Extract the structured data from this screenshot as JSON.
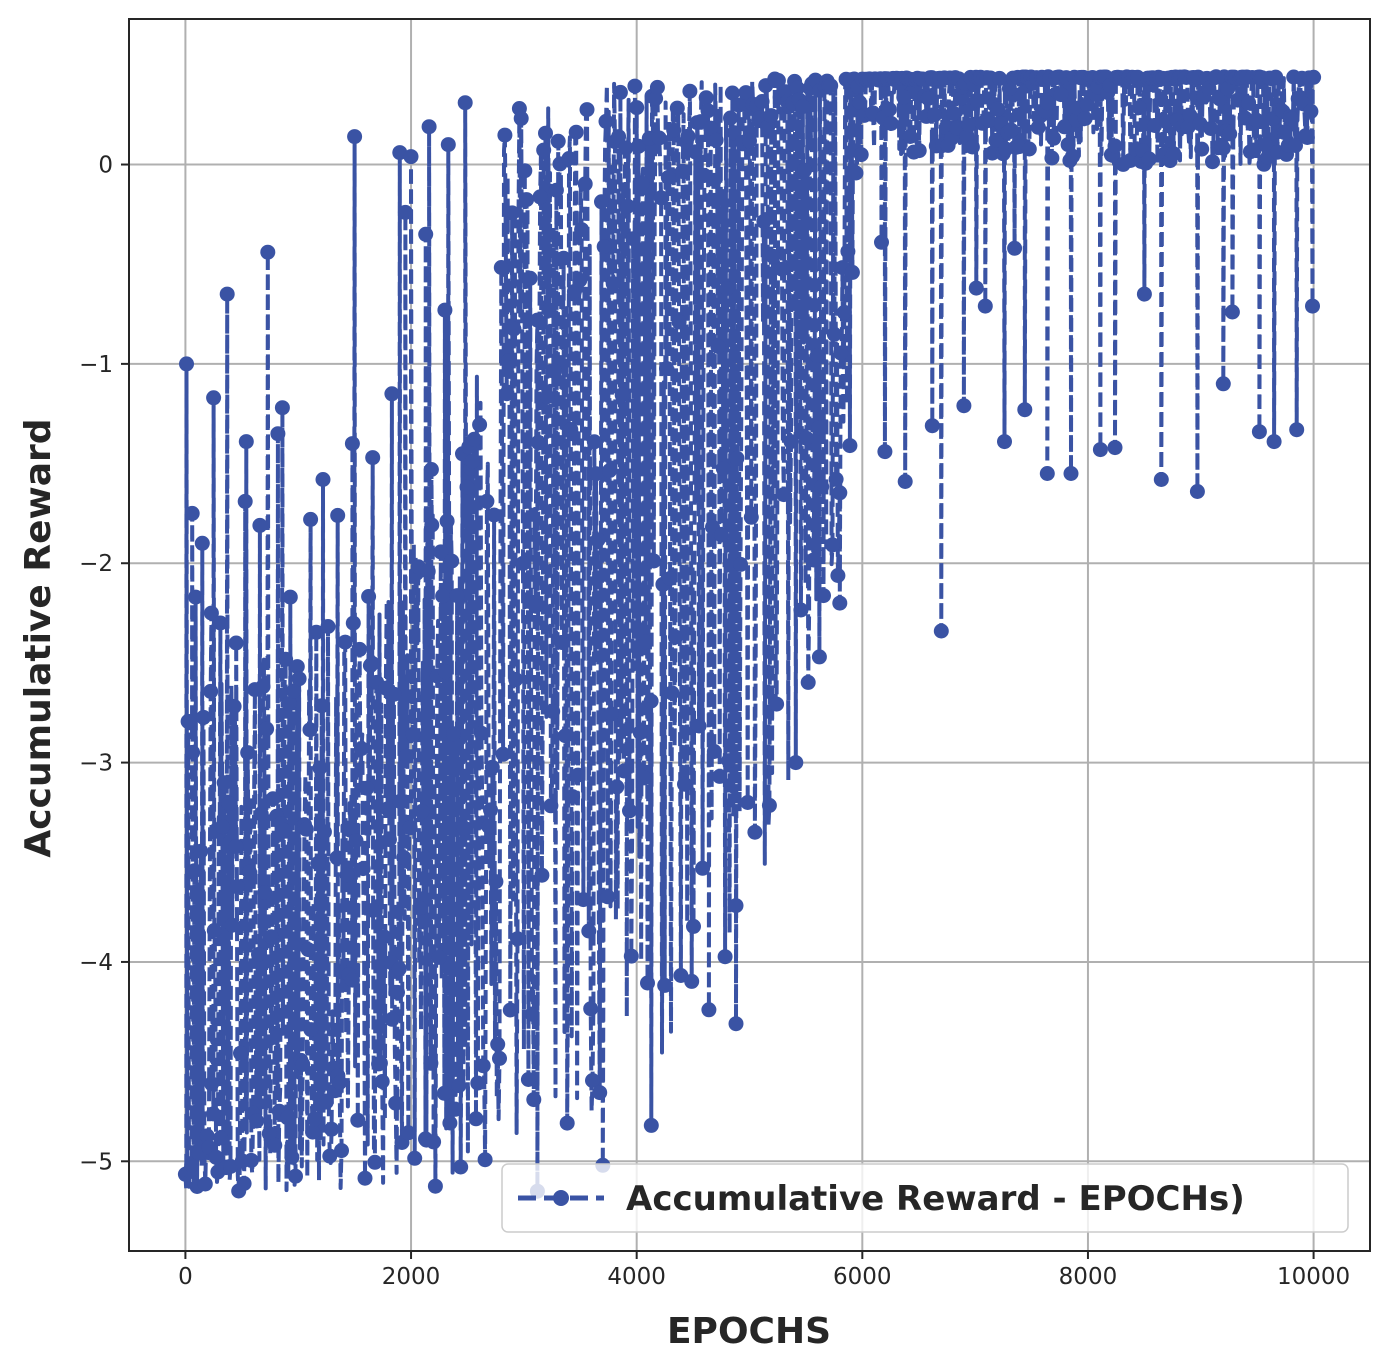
{
  "chart_data": {
    "type": "line",
    "title": "",
    "xlabel": "EPOCHS",
    "ylabel": "Accumulative Reward",
    "xlim": [
      -500,
      10500
    ],
    "ylim": [
      -5.45,
      0.73
    ],
    "xticks": [
      0,
      2000,
      4000,
      6000,
      8000,
      10000
    ],
    "xtick_labels": [
      "0",
      "2000",
      "4000",
      "6000",
      "8000",
      "10000"
    ],
    "yticks": [
      0,
      -1,
      -2,
      -3,
      -4,
      -5
    ],
    "ytick_labels": [
      "0",
      "−1",
      "−2",
      "−3",
      "−4",
      "−5"
    ],
    "grid": true,
    "legend_position": "lower right",
    "series": [
      {
        "name": "Accumulative Reward - EPOCHs)",
        "color": "#3a53a4",
        "linestyle": "dashed",
        "marker": "circle",
        "n_points": 10000,
        "envelope": {
          "x": [
            0,
            500,
            1000,
            1500,
            2000,
            2500,
            2700,
            3000,
            3500,
            4000,
            4500,
            5000,
            5500,
            5800,
            6000,
            7000,
            8000,
            9000,
            10000
          ],
          "upper": [
            -2.6,
            -2.5,
            -2.4,
            -2.2,
            -1.9,
            -1.3,
            0.38,
            0.4,
            0.42,
            0.43,
            0.43,
            0.43,
            0.43,
            0.43,
            0.43,
            0.44,
            0.44,
            0.44,
            0.44
          ],
          "typical": [
            -5.0,
            -4.5,
            -4.2,
            -3.8,
            -3.2,
            -2.6,
            -2.0,
            -1.5,
            -1.0,
            -0.5,
            -0.2,
            0.1,
            0.3,
            0.4,
            0.42,
            0.43,
            0.43,
            0.43,
            0.43
          ],
          "lower": [
            -5.15,
            -5.15,
            -5.15,
            -5.15,
            -5.15,
            -5.1,
            -5.05,
            -5.0,
            -4.9,
            -4.7,
            -4.4,
            -3.8,
            -2.9,
            -2.2,
            0.05,
            0.05,
            0.0,
            0.0,
            0.0
          ]
        },
        "spikes": [
          {
            "x": 10,
            "y": -1.0
          },
          {
            "x": 60,
            "y": -1.75
          },
          {
            "x": 90,
            "y": -2.17
          },
          {
            "x": 150,
            "y": -1.9
          },
          {
            "x": 230,
            "y": -2.25
          },
          {
            "x": 250,
            "y": -1.17
          },
          {
            "x": 310,
            "y": -2.3
          },
          {
            "x": 370,
            "y": -0.65
          },
          {
            "x": 450,
            "y": -2.4
          },
          {
            "x": 540,
            "y": -1.39
          },
          {
            "x": 530,
            "y": -1.69
          },
          {
            "x": 660,
            "y": -1.81
          },
          {
            "x": 730,
            "y": -0.44
          },
          {
            "x": 820,
            "y": -1.35
          },
          {
            "x": 860,
            "y": -1.22
          },
          {
            "x": 930,
            "y": -2.17
          },
          {
            "x": 1110,
            "y": -1.78
          },
          {
            "x": 1220,
            "y": -1.58
          },
          {
            "x": 1350,
            "y": -1.76
          },
          {
            "x": 1480,
            "y": -1.4
          },
          {
            "x": 1500,
            "y": 0.14
          },
          {
            "x": 1660,
            "y": -1.47
          },
          {
            "x": 1830,
            "y": -1.15
          },
          {
            "x": 1900,
            "y": 0.06
          },
          {
            "x": 1950,
            "y": -0.24
          },
          {
            "x": 2000,
            "y": 0.04
          },
          {
            "x": 2130,
            "y": -0.35
          },
          {
            "x": 2160,
            "y": 0.19
          },
          {
            "x": 2180,
            "y": -1.53
          },
          {
            "x": 2300,
            "y": -0.73
          },
          {
            "x": 2330,
            "y": 0.1
          },
          {
            "x": 2480,
            "y": 0.31
          },
          {
            "x": 3120,
            "y": -5.15
          },
          {
            "x": 3700,
            "y": -5.02
          },
          {
            "x": 4130,
            "y": -4.82
          },
          {
            "x": 4640,
            "y": -4.24
          },
          {
            "x": 4880,
            "y": -4.31
          },
          {
            "x": 5410,
            "y": -3.0
          },
          {
            "x": 5620,
            "y": -2.47
          },
          {
            "x": 5800,
            "y": -2.2
          },
          {
            "x": 5890,
            "y": -1.41
          },
          {
            "x": 5990,
            "y": 0.05
          },
          {
            "x": 6170,
            "y": -0.39
          },
          {
            "x": 6200,
            "y": -1.44
          },
          {
            "x": 6380,
            "y": -1.59
          },
          {
            "x": 6620,
            "y": -1.31
          },
          {
            "x": 6700,
            "y": -2.34
          },
          {
            "x": 6900,
            "y": -1.21
          },
          {
            "x": 7010,
            "y": -0.62
          },
          {
            "x": 7090,
            "y": -0.71
          },
          {
            "x": 7260,
            "y": -1.39
          },
          {
            "x": 7350,
            "y": -0.42
          },
          {
            "x": 7440,
            "y": -1.23
          },
          {
            "x": 7640,
            "y": -1.55
          },
          {
            "x": 7850,
            "y": -1.55
          },
          {
            "x": 8110,
            "y": -1.43
          },
          {
            "x": 8240,
            "y": -1.42
          },
          {
            "x": 8500,
            "y": -0.65
          },
          {
            "x": 8650,
            "y": -1.58
          },
          {
            "x": 8970,
            "y": -1.64
          },
          {
            "x": 9200,
            "y": -1.1
          },
          {
            "x": 9280,
            "y": -0.74
          },
          {
            "x": 9520,
            "y": -1.34
          },
          {
            "x": 9650,
            "y": -1.39
          },
          {
            "x": 9850,
            "y": -1.33
          },
          {
            "x": 9990,
            "y": -0.71
          }
        ]
      }
    ]
  }
}
